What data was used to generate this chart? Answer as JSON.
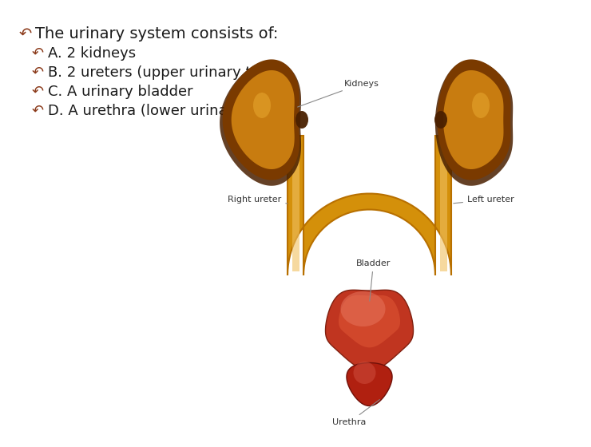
{
  "bg_color": "#ffffff",
  "border_color": "#cccccc",
  "title_line": "The urinary system consists of:",
  "bullets": [
    "A. 2 kidneys",
    "B. 2 ureters (upper urinary tract)",
    "C. A urinary bladder",
    "D. A urethra (lower urinary tract)"
  ],
  "bullet_icon": "↶",
  "text_color": "#1a1a1a",
  "bullet_color": "#8B3A1A",
  "title_fontsize": 14,
  "bullet_fontsize": 13,
  "kidney_dark": "#4a2000",
  "kidney_mid": "#7a3a00",
  "kidney_light": "#c87c10",
  "kidney_hi": "#e8a830",
  "ureter_fill": "#d4900a",
  "ureter_inner": "#f0c060",
  "ureter_edge": "#b87000",
  "bladder_base": "#c03520",
  "bladder_mid": "#d95030",
  "bladder_hi": "#e87860",
  "urethra_base": "#b02010",
  "urethra_hi": "#d05040",
  "conn_color": "#e8dcc0",
  "label_color": "#333333",
  "label_fs": 8
}
